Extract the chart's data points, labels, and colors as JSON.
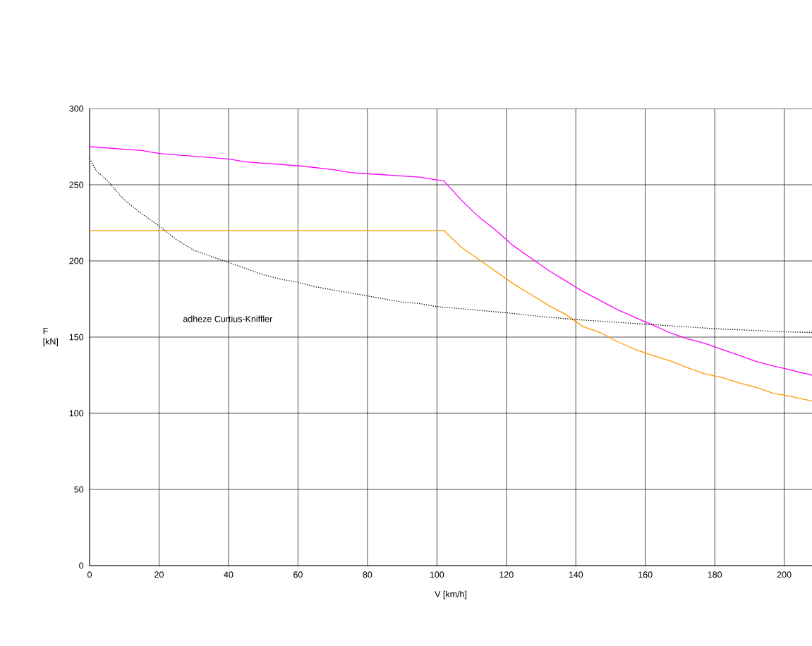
{
  "chart_data": {
    "type": "line",
    "xlabel": "V [km/h]",
    "ylabel": "F [kN]",
    "xlim": [
      0,
      208
    ],
    "xticks": [
      0,
      20,
      40,
      60,
      80,
      100,
      120,
      140,
      160,
      180,
      200
    ],
    "ylim": [
      0,
      300
    ],
    "yticks": [
      0,
      50,
      100,
      150,
      200,
      250,
      300
    ],
    "grid": true,
    "marker": "none",
    "annotations": [
      "adheze Curtius-Kniffler"
    ],
    "series": [
      {
        "color": "#ff00ff",
        "line_style": "solid",
        "x": [
          0,
          15,
          20,
          40,
          45,
          60,
          70,
          75,
          95,
          102,
          107,
          112,
          117,
          122,
          127,
          132,
          137,
          142,
          147,
          152,
          157,
          162,
          167,
          172,
          177,
          182,
          187,
          192,
          197,
          200,
          208
        ],
        "values": [
          275,
          272.5,
          270.5,
          267,
          265,
          262.5,
          260,
          258,
          255,
          252.5,
          240,
          229,
          220,
          210,
          202,
          194,
          187,
          180,
          174,
          168,
          163,
          158,
          153,
          149,
          146,
          142,
          138,
          134,
          131,
          129.5,
          125
        ]
      },
      {
        "color": "#ff9900",
        "line_style": "solid",
        "x": [
          0,
          102,
          107,
          112,
          117,
          122,
          127,
          132,
          137,
          142,
          147,
          152,
          157,
          162,
          167,
          172,
          177,
          182,
          187,
          192,
          197,
          200,
          208
        ],
        "values": [
          220,
          220,
          209,
          201,
          193,
          185,
          178,
          171,
          165,
          157,
          153,
          147,
          142,
          138,
          134.5,
          130,
          126,
          123.5,
          120,
          117,
          113,
          112,
          108
        ]
      },
      {
        "color": "#000000",
        "line_style": "dotted",
        "x": [
          0,
          2,
          5,
          10,
          15,
          20,
          25,
          30,
          35,
          40,
          45,
          50,
          55,
          60,
          65,
          70,
          75,
          80,
          85,
          90,
          95,
          100,
          110,
          120,
          130,
          140,
          150,
          160,
          170,
          180,
          190,
          200,
          208
        ],
        "values": [
          267,
          259,
          253,
          240,
          231,
          223,
          214,
          207,
          203,
          199,
          195,
          191,
          188,
          186,
          183,
          181,
          179,
          177,
          175,
          173,
          172,
          170,
          168,
          166,
          163.5,
          161.5,
          160,
          158.5,
          157,
          155.5,
          154.5,
          153.5,
          153
        ]
      }
    ]
  }
}
